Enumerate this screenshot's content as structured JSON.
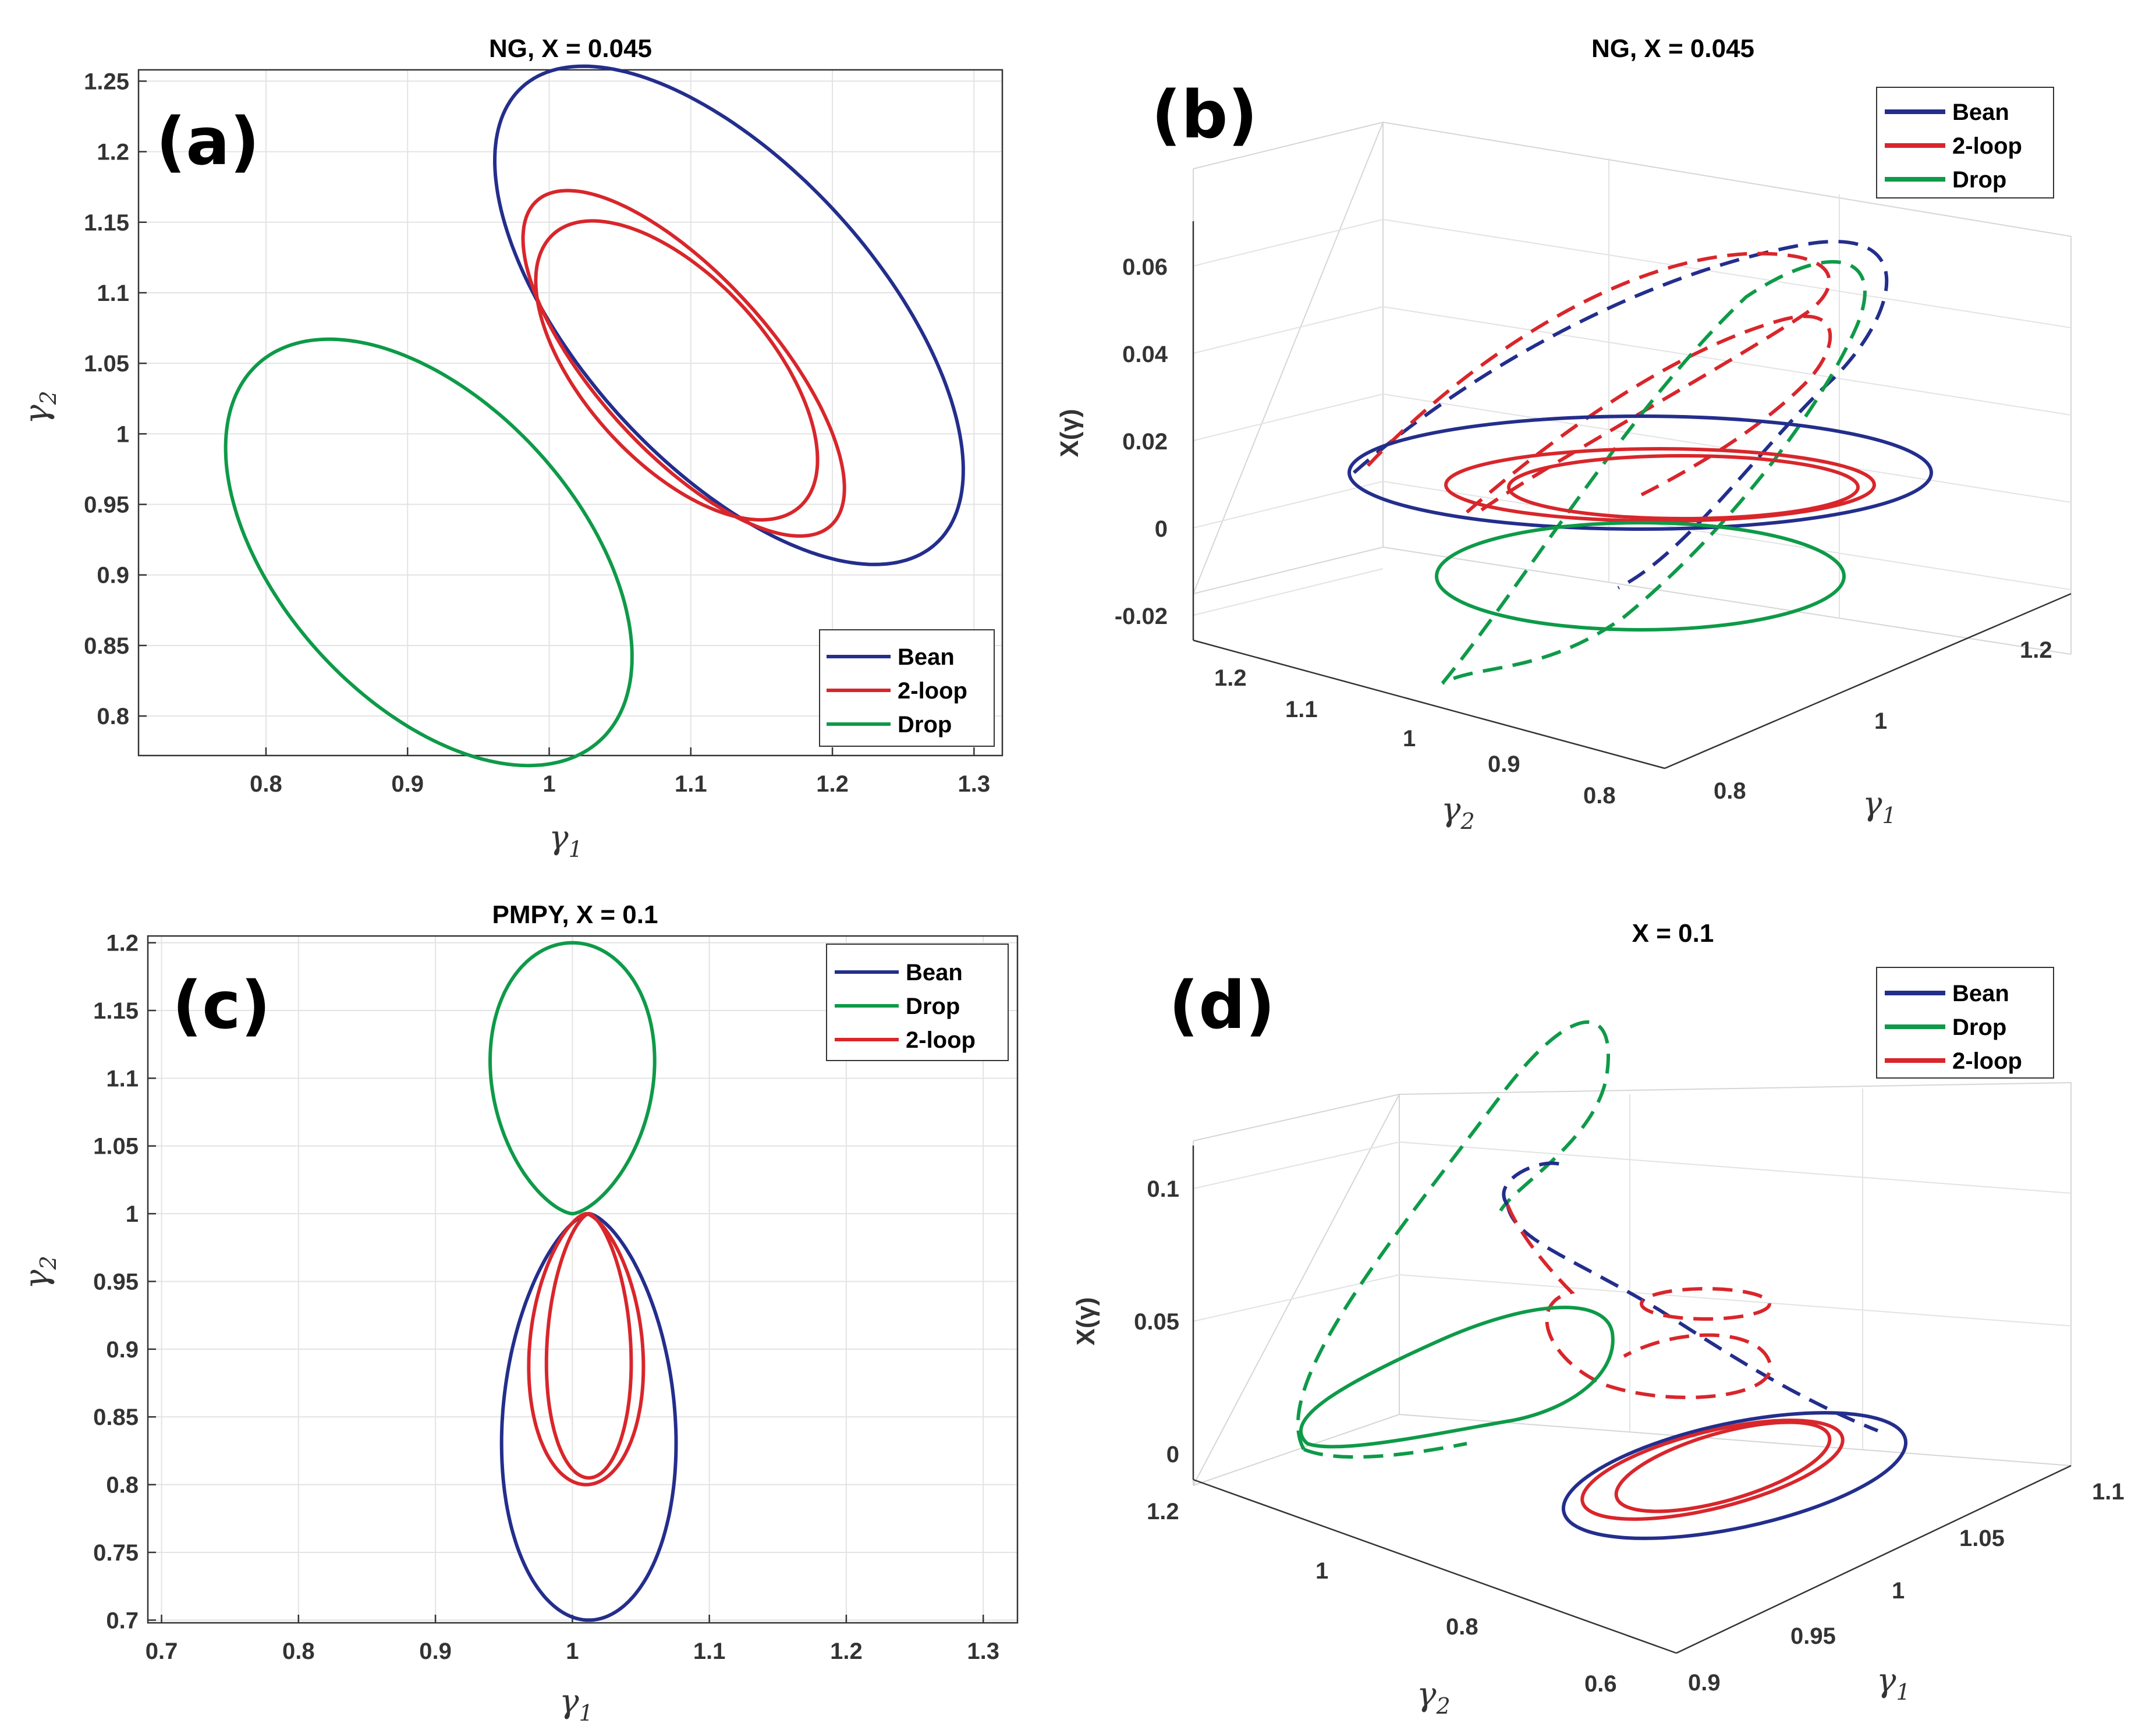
{
  "colors": {
    "bean": "#232e8c",
    "loop": "#d8262b",
    "drop": "#0e9a48"
  },
  "chart_data": [
    {
      "id": "a",
      "type": "line",
      "panel_label": "(a)",
      "title": "NG, X = 0.045",
      "xlabel": "γ",
      "xlabel_sub": "1",
      "ylabel": "γ",
      "ylabel_sub": "2",
      "xlim": [
        0.71,
        1.32
      ],
      "ylim": [
        0.772,
        1.258
      ],
      "xticks": [
        "0.8",
        "0.9",
        "1",
        "1.1",
        "1.2",
        "1.3"
      ],
      "xtick_values": [
        0.8,
        0.9,
        1.0,
        1.1,
        1.2,
        1.3
      ],
      "yticks": [
        "0.8",
        "0.85",
        "0.9",
        "0.95",
        "1",
        "1.05",
        "1.1",
        "1.15",
        "1.2",
        "1.25"
      ],
      "ytick_values": [
        0.8,
        0.85,
        0.9,
        0.95,
        1.0,
        1.05,
        1.1,
        1.15,
        1.2,
        1.25
      ],
      "legend": [
        "Bean",
        "2-loop",
        "Drop"
      ],
      "legend_position": "bottom-right",
      "series": [
        {
          "name": "Bean",
          "color_key": "bean",
          "shape": "ellipse",
          "center": [
            1.127,
            1.084
          ],
          "semi_axes": [
            0.218,
            0.105
          ],
          "angle_deg": -48
        },
        {
          "name": "2-loop",
          "color_key": "loop",
          "shape": "ellipse",
          "center": [
            1.095,
            1.05
          ],
          "semi_axes": [
            0.155,
            0.062
          ],
          "angle_deg": -48
        },
        {
          "name": "2-loop",
          "color_key": "loop",
          "shape": "ellipse",
          "center": [
            1.09,
            1.045
          ],
          "semi_axes": [
            0.13,
            0.065
          ],
          "angle_deg": -48
        },
        {
          "name": "Drop",
          "color_key": "drop",
          "shape": "ellipse",
          "center": [
            0.915,
            0.916
          ],
          "semi_axes": [
            0.18,
            0.105
          ],
          "angle_deg": -48
        }
      ]
    },
    {
      "id": "b",
      "type": "line",
      "panel_label": "(b)",
      "title": "NG, X = 0.045",
      "zlabel": "X(γ)",
      "xlabel": "γ",
      "xlabel_sub": "1",
      "ylabel": "γ",
      "ylabel_sub": "2",
      "zticks": [
        "-0.02",
        "0",
        "0.02",
        "0.04",
        "0.06"
      ],
      "gamma2_ticks": [
        "1.2",
        "1.1",
        "1",
        "0.9",
        "0.8"
      ],
      "gamma1_ticks": [
        "0.8",
        "1",
        "1.2"
      ],
      "legend": [
        "Bean",
        "2-loop",
        "Drop"
      ],
      "legend_position": "top-right"
    },
    {
      "id": "c",
      "type": "line",
      "panel_label": "(c)",
      "title": "PMPY, X = 0.1",
      "xlabel": "γ",
      "xlabel_sub": "1",
      "ylabel": "γ",
      "ylabel_sub": "2",
      "xlim": [
        0.69,
        1.325
      ],
      "ylim": [
        0.698,
        1.205
      ],
      "xticks": [
        "0.7",
        "0.8",
        "0.9",
        "1",
        "1.1",
        "1.2",
        "1.3"
      ],
      "xtick_values": [
        0.7,
        0.8,
        0.9,
        1.0,
        1.1,
        1.2,
        1.3
      ],
      "yticks": [
        "0.7",
        "0.75",
        "0.8",
        "0.85",
        "0.9",
        "0.95",
        "1",
        "1.05",
        "1.1",
        "1.15",
        "1.2"
      ],
      "ytick_values": [
        0.7,
        0.75,
        0.8,
        0.85,
        0.9,
        0.95,
        1.0,
        1.05,
        1.1,
        1.15,
        1.2
      ],
      "legend": [
        "Bean",
        "Drop",
        "2-loop"
      ],
      "legend_position": "top-right"
    },
    {
      "id": "d",
      "type": "line",
      "panel_label": "(d)",
      "title": "X = 0.1",
      "zlabel": "X(γ)",
      "xlabel": "γ",
      "xlabel_sub": "1",
      "ylabel": "γ",
      "ylabel_sub": "2",
      "zticks": [
        "0",
        "0.05",
        "0.1"
      ],
      "gamma2_ticks": [
        "1.2",
        "1",
        "0.8",
        "0.6"
      ],
      "gamma1_ticks": [
        "0.9",
        "0.95",
        "1",
        "1.05",
        "1.1"
      ],
      "legend": [
        "Bean",
        "Drop",
        "2-loop"
      ],
      "legend_position": "top-right"
    }
  ]
}
